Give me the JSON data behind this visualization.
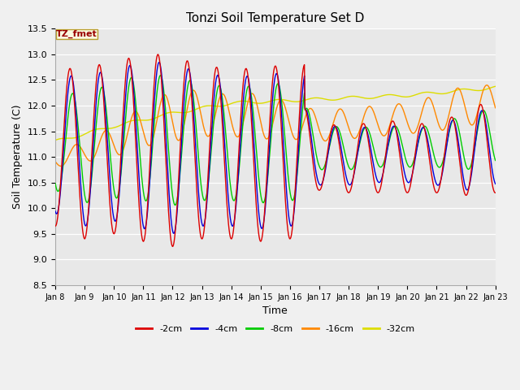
{
  "title": "Tonzi Soil Temperature Set D",
  "xlabel": "Time",
  "ylabel": "Soil Temperature (C)",
  "ylim": [
    8.5,
    13.5
  ],
  "plot_bg": "#e8e8e8",
  "fig_bg": "#f0f0f0",
  "legend_label": "TZ_fmet",
  "series_colors": {
    "-2cm": "#dd0000",
    "-4cm": "#0000dd",
    "-8cm": "#00cc00",
    "-16cm": "#ff8800",
    "-32cm": "#dddd00"
  },
  "xtick_labels": [
    "Jan 8",
    "Jan 9",
    "Jan 10",
    "Jan 11",
    "Jan 12",
    "Jan 13",
    "Jan 14",
    "Jan 15",
    "Jan 16",
    "Jan 17",
    "Jan 18",
    "Jan 19",
    "Jan 20",
    "Jan 21",
    "Jan 22",
    "Jan 23"
  ],
  "ytick_vals": [
    8.5,
    9.0,
    9.5,
    10.0,
    10.5,
    11.0,
    11.5,
    12.0,
    12.5,
    13.0,
    13.5
  ],
  "n_days": 15,
  "figsize": [
    6.4,
    4.8
  ],
  "dpi": 100
}
